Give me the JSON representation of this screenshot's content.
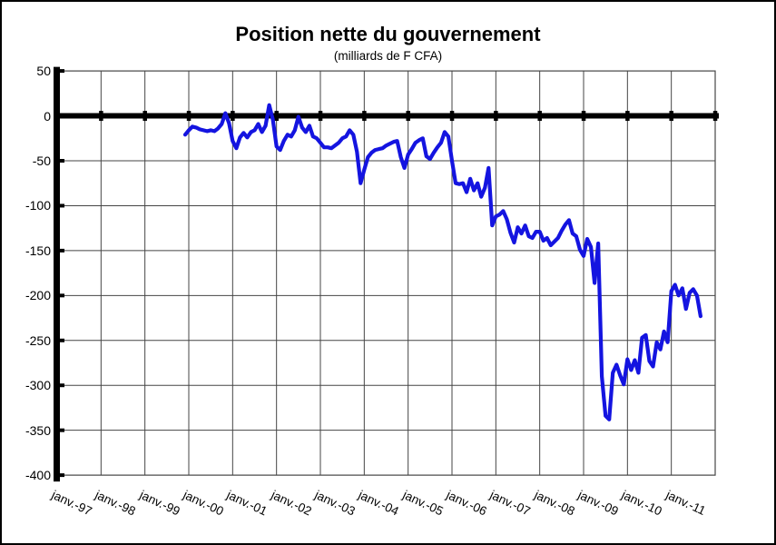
{
  "title": "Position nette du gouvernement",
  "subtitle": "(milliards de F CFA)",
  "colors": {
    "line": "#1414e0",
    "grid": "#454545",
    "axis": "#000000",
    "background": "#ffffff"
  },
  "chart_data": {
    "type": "line",
    "title": "Position nette du gouvernement",
    "subtitle": "(milliards de F CFA)",
    "unit": "milliards de F CFA",
    "grid": true,
    "legend": false,
    "ylim": [
      -400,
      50
    ],
    "y_tick_step": 50,
    "y_tick_labels": [
      "50",
      "0",
      "-50",
      "-100",
      "-150",
      "-200",
      "-250",
      "-300",
      "-350",
      "-400"
    ],
    "x_tick_labels": [
      "janv.-97",
      "janv.-98",
      "janv.-99",
      "janv.-00",
      "janv.-01",
      "janv.-02",
      "janv.-03",
      "janv.-04",
      "janv.-05",
      "janv.-06",
      "janv.-07",
      "janv.-08",
      "janv.-09",
      "janv.-10",
      "janv.-11"
    ],
    "x_axis_start": "janv.-97",
    "x_axis_end": "janv.-12",
    "series": [
      {
        "name": "Position nette du gouvernement",
        "frequency": "monthly",
        "first_point": "déc-1999",
        "last_point": "sept-2011",
        "values": [
          -21,
          -16,
          -12,
          -13,
          -15,
          -16,
          -17,
          -16,
          -17,
          -14,
          -9,
          3,
          -8,
          -28,
          -36,
          -24,
          -19,
          -24,
          -18,
          -16,
          -9,
          -18,
          -11,
          12,
          -4,
          -34,
          -38,
          -28,
          -21,
          -23,
          -16,
          -1,
          -13,
          -18,
          -11,
          -23,
          -25,
          -30,
          -35,
          -35,
          -36,
          -33,
          -30,
          -25,
          -23,
          -16,
          -21,
          -40,
          -75,
          -60,
          -46,
          -41,
          -38,
          -37,
          -36,
          -33,
          -31,
          -29,
          -28,
          -46,
          -58,
          -43,
          -37,
          -30,
          -27,
          -25,
          -45,
          -48,
          -41,
          -35,
          -30,
          -18,
          -23,
          -50,
          -75,
          -76,
          -75,
          -85,
          -70,
          -83,
          -75,
          -90,
          -80,
          -58,
          -122,
          -112,
          -110,
          -106,
          -115,
          -130,
          -141,
          -124,
          -131,
          -122,
          -134,
          -136,
          -129,
          -129,
          -139,
          -136,
          -144,
          -140,
          -136,
          -128,
          -121,
          -116,
          -131,
          -134,
          -149,
          -156,
          -137,
          -146,
          -186,
          -142,
          -290,
          -334,
          -338,
          -286,
          -277,
          -289,
          -299,
          -271,
          -283,
          -272,
          -286,
          -247,
          -244,
          -273,
          -279,
          -252,
          -260,
          -240,
          -252,
          -195,
          -188,
          -200,
          -192,
          -215,
          -197,
          -193,
          -200,
          -223
        ]
      }
    ]
  }
}
